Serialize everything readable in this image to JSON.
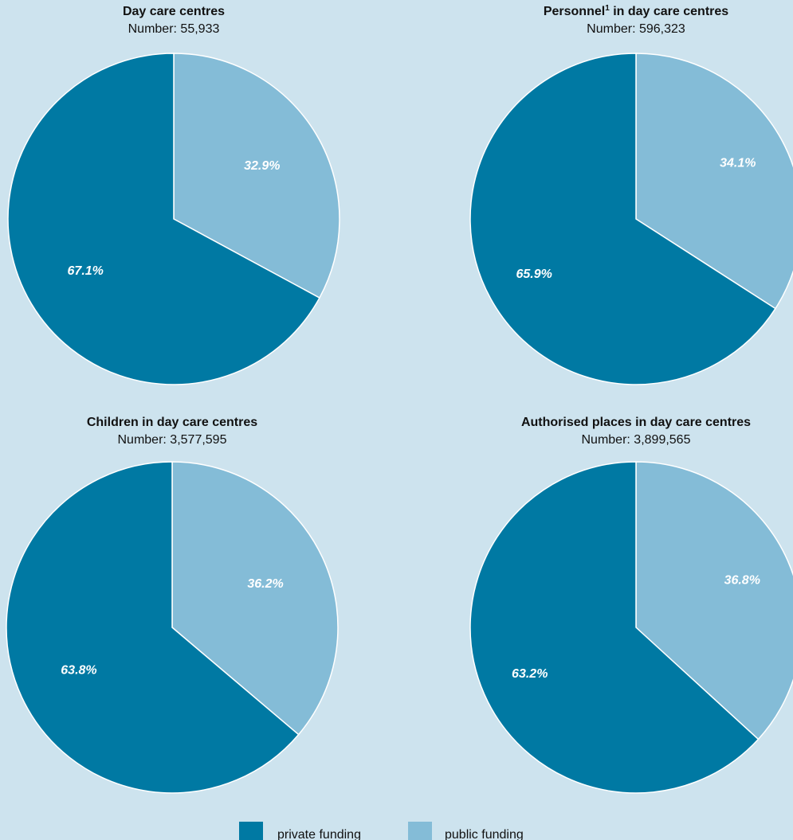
{
  "colors": {
    "background": "#cde3ee",
    "private": "#0079a3",
    "public": "#84bcd7",
    "slice_border": "#ffffff"
  },
  "legend": [
    {
      "label": "private funding",
      "color": "#0079a3"
    },
    {
      "label": "public funding",
      "color": "#84bcd7"
    }
  ],
  "chart_data": [
    {
      "type": "pie",
      "title": "Day care centres",
      "subtitle": "Number: 55,933",
      "slices": [
        {
          "name": "public funding",
          "value": 32.9,
          "label": "32.9%"
        },
        {
          "name": "private funding",
          "value": 67.1,
          "label": "67.1%"
        }
      ]
    },
    {
      "type": "pie",
      "title": "Personnel",
      "title_sup": "1",
      "title_rest": " in day care centres",
      "subtitle": "Number: 596,323",
      "slices": [
        {
          "name": "public funding",
          "value": 34.1,
          "label": "34.1%"
        },
        {
          "name": "private funding",
          "value": 65.9,
          "label": "65.9%"
        }
      ]
    },
    {
      "type": "pie",
      "title": "Children in day care centres",
      "subtitle": "Number: 3,577,595",
      "slices": [
        {
          "name": "public funding",
          "value": 36.2,
          "label": "36.2%"
        },
        {
          "name": "private funding",
          "value": 63.8,
          "label": "63.8%"
        }
      ]
    },
    {
      "type": "pie",
      "title": "Authorised places in day care centres",
      "subtitle": "Number: 3,899,565",
      "slices": [
        {
          "name": "public funding",
          "value": 36.8,
          "label": "36.8%"
        },
        {
          "name": "private funding",
          "value": 63.2,
          "label": "63.2%"
        }
      ]
    }
  ]
}
